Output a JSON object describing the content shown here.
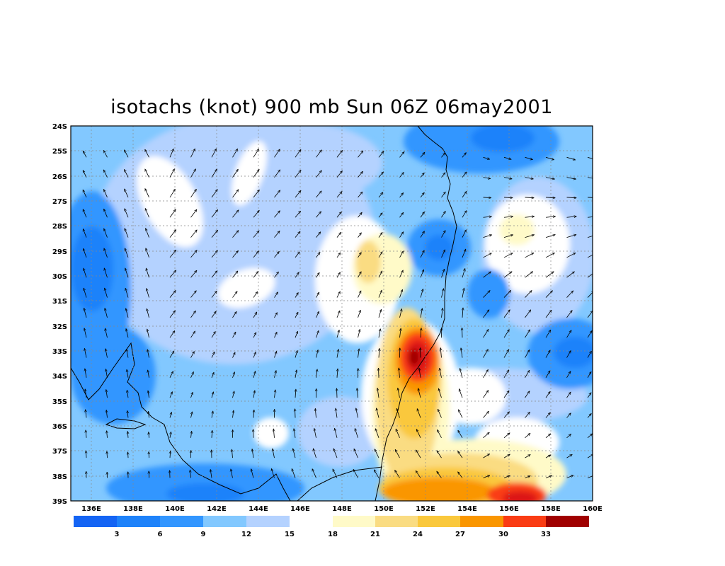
{
  "title": "isotachs (knot) 900 mb Sun 06Z 06may2001",
  "map": {
    "lon_ticks": [
      "136E",
      "138E",
      "140E",
      "142E",
      "144E",
      "146E",
      "148E",
      "150E",
      "152E",
      "154E",
      "156E",
      "158E",
      "160E"
    ],
    "lat_ticks": [
      "24S",
      "25S",
      "26S",
      "27S",
      "28S",
      "29S",
      "30S",
      "31S",
      "32S",
      "33S",
      "34S",
      "35S",
      "36S",
      "37S",
      "38S",
      "39S"
    ],
    "lon_range": [
      135,
      160
    ],
    "lat_range": [
      -39,
      -24
    ],
    "grid": "dotted"
  },
  "colorbar": {
    "colors": [
      "#1464f4",
      "#1e82fa",
      "#3296ff",
      "#82c8ff",
      "#b4d2ff",
      "#ffffff",
      "#fffac8",
      "#fadc82",
      "#fac83c",
      "#fa9600",
      "#fa3c14",
      "#dc1414",
      "#a00000"
    ],
    "labels": [
      "3",
      "6",
      "9",
      "12",
      "15",
      "18",
      "21",
      "24",
      "27",
      "30",
      "33"
    ]
  },
  "legend_colors": {
    "land_outline": "#000000",
    "arrows": "#000000"
  }
}
